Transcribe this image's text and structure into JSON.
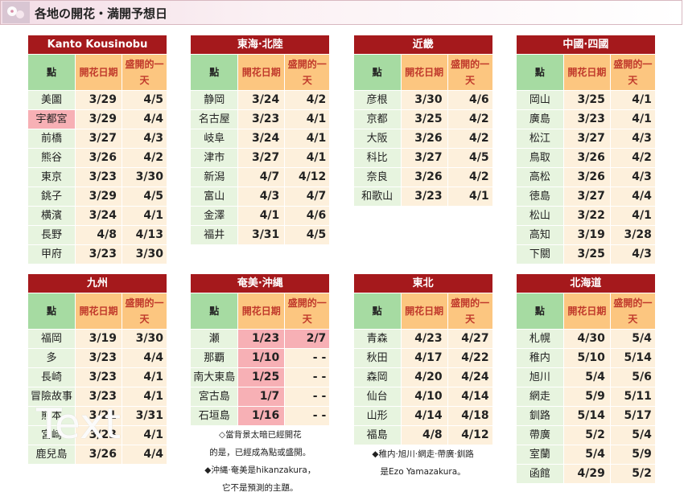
{
  "header": {
    "title": "各地の開花・満開予想日"
  },
  "columns": [
    "點",
    "開花日期",
    "盛開的一天"
  ],
  "regions": [
    {
      "name": "Kanto Kousinobu",
      "rows": [
        [
          "美圖",
          "3/29",
          "4/5"
        ],
        [
          "宇都宮",
          "3/29",
          "4/4"
        ],
        [
          "前橋",
          "3/27",
          "4/3"
        ],
        [
          "熊谷",
          "3/26",
          "4/2"
        ],
        [
          "東京",
          "3/23",
          "3/30"
        ],
        [
          "銚子",
          "3/29",
          "4/5"
        ],
        [
          "横濱",
          "3/24",
          "4/1"
        ],
        [
          "長野",
          "4/8",
          "4/13"
        ],
        [
          "甲府",
          "3/23",
          "3/30"
        ]
      ],
      "highlight": [
        [
          1,
          0
        ]
      ]
    },
    {
      "name": "東海·北陸",
      "rows": [
        [
          "静岡",
          "3/24",
          "4/2"
        ],
        [
          "名古屋",
          "3/23",
          "4/1"
        ],
        [
          "岐阜",
          "3/24",
          "4/1"
        ],
        [
          "津市",
          "3/27",
          "4/1"
        ],
        [
          "新潟",
          "4/7",
          "4/12"
        ],
        [
          "富山",
          "4/3",
          "4/7"
        ],
        [
          "金澤",
          "4/1",
          "4/6"
        ],
        [
          "福井",
          "3/31",
          "4/5"
        ]
      ]
    },
    {
      "name": "近畿",
      "rows": [
        [
          "彦根",
          "3/30",
          "4/6"
        ],
        [
          "京都",
          "3/25",
          "4/2"
        ],
        [
          "大阪",
          "3/26",
          "4/2"
        ],
        [
          "科比",
          "3/27",
          "4/5"
        ],
        [
          "奈良",
          "3/26",
          "4/2"
        ],
        [
          "和歌山",
          "3/23",
          "4/1"
        ]
      ]
    },
    {
      "name": "中國·四國",
      "rows": [
        [
          "岡山",
          "3/25",
          "4/1"
        ],
        [
          "廣島",
          "3/23",
          "4/1"
        ],
        [
          "松江",
          "3/27",
          "4/3"
        ],
        [
          "鳥取",
          "3/26",
          "4/2"
        ],
        [
          "高松",
          "3/26",
          "4/3"
        ],
        [
          "徳島",
          "3/27",
          "4/4"
        ],
        [
          "松山",
          "3/22",
          "4/1"
        ],
        [
          "高知",
          "3/19",
          "3/28"
        ],
        [
          "下關",
          "3/25",
          "4/3"
        ]
      ]
    },
    {
      "name": "九州",
      "rows": [
        [
          "福岡",
          "3/19",
          "3/30"
        ],
        [
          "多",
          "3/23",
          "4/4"
        ],
        [
          "長崎",
          "3/23",
          "4/1"
        ],
        [
          "冒險故事",
          "3/23",
          "4/1"
        ],
        [
          "熊本",
          "3/21",
          "3/31"
        ],
        [
          "宮崎",
          "3/23",
          "4/1"
        ],
        [
          "鹿兒島",
          "3/26",
          "4/4"
        ]
      ]
    },
    {
      "name": "奄美·沖縄",
      "rows": [
        [
          "瀬",
          "1/23",
          "2/7"
        ],
        [
          "那覇",
          "1/10",
          "- -"
        ],
        [
          "南大東島",
          "1/25",
          "- -"
        ],
        [
          "宮古島",
          "1/7",
          "- -"
        ],
        [
          "石垣島",
          "1/16",
          "- -"
        ]
      ],
      "highlight": [
        [
          0,
          1
        ],
        [
          0,
          2
        ],
        [
          1,
          1
        ],
        [
          2,
          1
        ],
        [
          3,
          1
        ],
        [
          4,
          1
        ]
      ],
      "notes": [
        "◇當背景太暗已經開花",
        "的是，已經成為點或盛開。",
        "◆沖縄·奄美是hikanzakura，",
        "它不是預測的主題。"
      ]
    },
    {
      "name": "東北",
      "rows": [
        [
          "青森",
          "4/23",
          "4/27"
        ],
        [
          "秋田",
          "4/17",
          "4/22"
        ],
        [
          "森岡",
          "4/20",
          "4/24"
        ],
        [
          "仙台",
          "4/10",
          "4/14"
        ],
        [
          "山形",
          "4/14",
          "4/18"
        ],
        [
          "福島",
          "4/8",
          "4/12"
        ]
      ],
      "notes": [
        "◆稚内·旭川·網走·帶廣·釧路",
        "是Ezo Yamazakura。"
      ]
    },
    {
      "name": "北海道",
      "rows": [
        [
          "札幌",
          "4/30",
          "5/4"
        ],
        [
          "稚内",
          "5/10",
          "5/14"
        ],
        [
          "旭川",
          "5/4",
          "5/6"
        ],
        [
          "網走",
          "5/9",
          "5/11"
        ],
        [
          "釧路",
          "5/14",
          "5/17"
        ],
        [
          "帶廣",
          "5/2",
          "5/4"
        ],
        [
          "室蘭",
          "5/4",
          "5/9"
        ],
        [
          "函館",
          "4/29",
          "5/2"
        ]
      ]
    }
  ],
  "watermark": "Text"
}
